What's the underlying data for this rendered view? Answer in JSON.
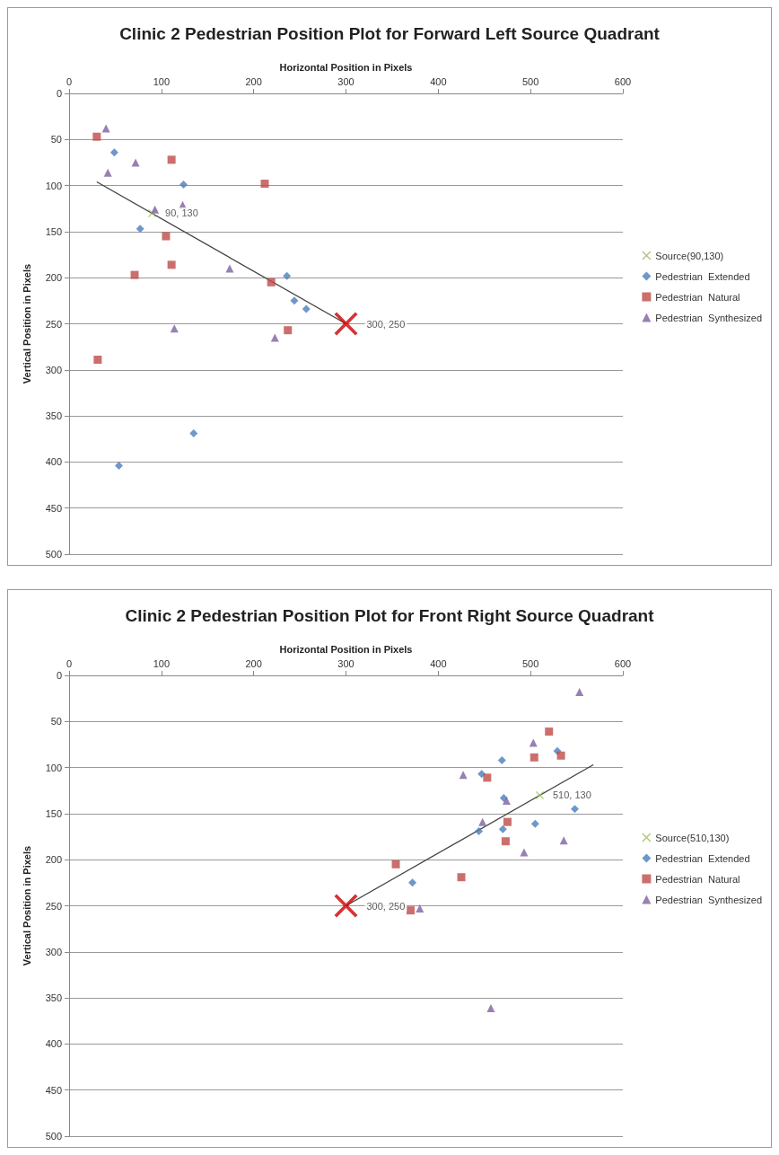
{
  "chart_data": [
    {
      "type": "scatter",
      "title": "Clinic 2 Pedestrian Position Plot for Forward Left Source Quadrant",
      "xlabel": "Horizontal Position in Pixels",
      "ylabel": "Vertical Position in Pixels",
      "xlim": [
        0,
        600
      ],
      "xticks": [
        0,
        100,
        200,
        300,
        400,
        500,
        600
      ],
      "ylim": [
        500,
        0
      ],
      "yticks": [
        0,
        50,
        100,
        150,
        200,
        250,
        300,
        350,
        400,
        450,
        500
      ],
      "grid": "y",
      "legend": "right",
      "series": [
        {
          "name": "Source(90,130)",
          "color": "#9bbb59",
          "marker": "cross",
          "x": [
            90
          ],
          "values": [
            130
          ],
          "value_labels": [
            "90, 130"
          ]
        },
        {
          "name": "Pedestrian  Extended",
          "color": "#4a7ebb",
          "marker": "diamond",
          "x": [
            49,
            124,
            77,
            112,
            236,
            244,
            257,
            135,
            54
          ],
          "values": [
            64,
            99,
            147,
            null,
            198,
            225,
            234,
            369,
            404
          ]
        },
        {
          "name": "Pedestrian  Natural",
          "color": "#be4b48",
          "marker": "square",
          "x": [
            30,
            111,
            212,
            105,
            111,
            71,
            219,
            237,
            31
          ],
          "values": [
            47,
            72,
            98,
            155,
            186,
            197,
            205,
            257,
            289
          ]
        },
        {
          "name": "Pedestrian  Synthesized",
          "color": "#7d60a0",
          "marker": "triangle",
          "x": [
            40,
            72,
            42,
            93,
            123,
            174,
            114,
            223
          ],
          "values": [
            38,
            75,
            86,
            126,
            121,
            190,
            255,
            265
          ]
        },
        {
          "color": "#cc0000",
          "marker": "cross",
          "x": [
            300
          ],
          "values": [
            250
          ],
          "value_labels": [
            "300, 250"
          ]
        },
        {
          "type": "line",
          "color": "#404040",
          "marker": "none",
          "x": [
            30,
            300
          ],
          "values": [
            96,
            250
          ]
        }
      ]
    },
    {
      "type": "scatter",
      "title": "Clinic 2 Pedestrian Position Plot for Front Right Source Quadrant",
      "xlabel": "Horizontal Position in Pixels",
      "ylabel": "Vertical Position in Pixels",
      "xlim": [
        0,
        600
      ],
      "xticks": [
        0,
        100,
        200,
        300,
        400,
        500,
        600
      ],
      "ylim": [
        500,
        0
      ],
      "yticks": [
        0,
        50,
        100,
        150,
        200,
        250,
        300,
        350,
        400,
        450,
        500
      ],
      "grid": "y",
      "legend": "right",
      "series": [
        {
          "name": "Source(510,130)",
          "color": "#9bbb59",
          "marker": "cross",
          "x": [
            510
          ],
          "values": [
            130
          ],
          "value_labels": [
            "510, 130"
          ]
        },
        {
          "name": "Pedestrian  Extended",
          "color": "#4a7ebb",
          "marker": "diamond",
          "x": [
            529,
            469,
            447,
            471,
            548,
            505,
            470,
            444,
            372
          ],
          "values": [
            82,
            92,
            107,
            133,
            145,
            161,
            167,
            169,
            225
          ]
        },
        {
          "name": "Pedestrian  Natural",
          "color": "#be4b48",
          "marker": "square",
          "x": [
            520,
            504,
            533,
            453,
            475,
            473,
            354,
            425,
            370
          ],
          "values": [
            61,
            89,
            87,
            111,
            159,
            180,
            205,
            219,
            255
          ]
        },
        {
          "name": "Pedestrian  Synthesized",
          "color": "#7d60a0",
          "marker": "triangle",
          "x": [
            553,
            503,
            427,
            474,
            448,
            493,
            536,
            380,
            457
          ],
          "values": [
            18,
            73,
            108,
            136,
            159,
            192,
            179,
            253,
            361
          ]
        },
        {
          "color": "#cc0000",
          "marker": "cross",
          "x": [
            300
          ],
          "values": [
            250
          ],
          "value_labels": [
            "300, 250"
          ]
        },
        {
          "type": "line",
          "color": "#404040",
          "marker": "none",
          "x": [
            300,
            568
          ],
          "values": [
            250,
            97
          ]
        }
      ]
    }
  ]
}
